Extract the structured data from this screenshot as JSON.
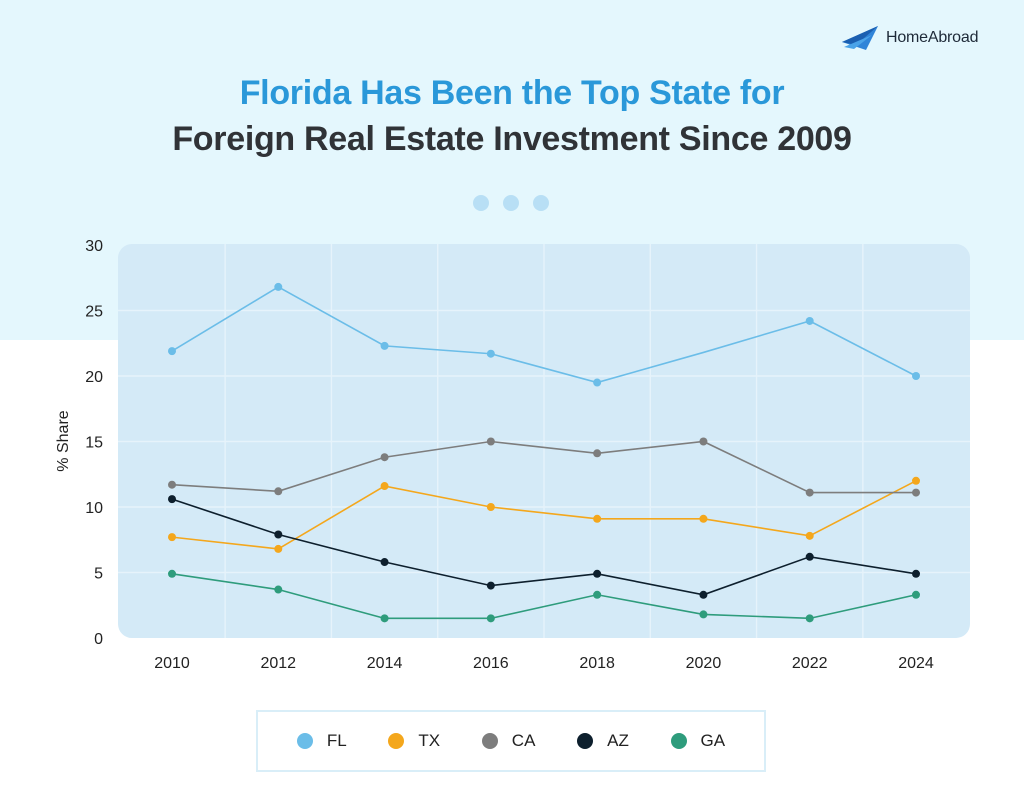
{
  "brand": {
    "name": "HomeAbroad",
    "icon": "paper-plane-logo",
    "color": "#2f84d8"
  },
  "title": {
    "line1": "Florida Has Been the Top State for",
    "line2": "Foreign Real Estate Investment Since 2009"
  },
  "chart_data": {
    "type": "line",
    "title": "Florida Has Been the Top State for Foreign Real Estate Investment Since 2009",
    "xlabel": "",
    "ylabel": "% Share",
    "x": [
      2010,
      2012,
      2014,
      2016,
      2018,
      2020,
      2022,
      2024
    ],
    "ylim": [
      0,
      30
    ],
    "yticks": [
      0,
      5,
      10,
      15,
      20,
      25,
      30
    ],
    "grid": true,
    "legend_position": "bottom",
    "series": [
      {
        "name": "FL",
        "color": "#6bbde8",
        "values": [
          21.9,
          26.8,
          22.3,
          21.7,
          19.5,
          null,
          24.2,
          20.0
        ],
        "interpolate": [
          null,
          null,
          null,
          null,
          null,
          21.8,
          null,
          null
        ]
      },
      {
        "name": "TX",
        "color": "#f4a71c",
        "values": [
          7.7,
          6.8,
          11.6,
          10.0,
          9.1,
          9.1,
          7.8,
          12.0
        ]
      },
      {
        "name": "CA",
        "color": "#7d7d7d",
        "values": [
          11.7,
          11.2,
          13.8,
          15.0,
          14.1,
          15.0,
          11.1,
          11.1
        ]
      },
      {
        "name": "AZ",
        "color": "#0d1f2d",
        "values": [
          10.6,
          7.9,
          5.8,
          4.0,
          4.9,
          3.3,
          6.2,
          4.9
        ]
      },
      {
        "name": "GA",
        "color": "#2e9c7c",
        "values": [
          4.9,
          3.7,
          1.5,
          1.5,
          3.3,
          1.8,
          1.5,
          3.3
        ]
      }
    ]
  }
}
